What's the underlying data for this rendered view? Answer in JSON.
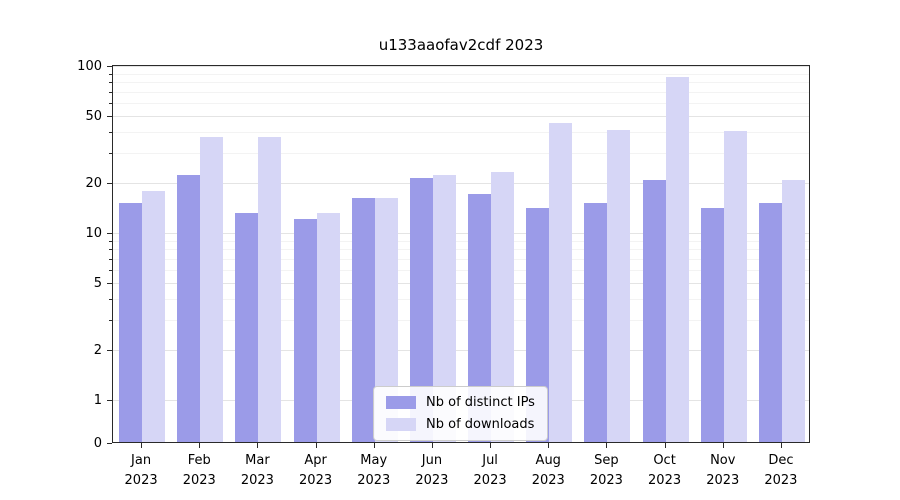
{
  "chart_data": {
    "type": "bar",
    "title": "u133aaofav2cdf 2023",
    "categories": [
      "Jan\n2023",
      "Feb\n2023",
      "Mar\n2023",
      "Apr\n2023",
      "May\n2023",
      "Jun\n2023",
      "Jul\n2023",
      "Aug\n2023",
      "Sep\n2023",
      "Oct\n2023",
      "Nov\n2023",
      "Dec\n2023"
    ],
    "series": [
      {
        "name": "Nb of distinct IPs",
        "color": "#9b9be8",
        "values": [
          15,
          22,
          13,
          12,
          16,
          21,
          17,
          14,
          15,
          20.5,
          14,
          15
        ]
      },
      {
        "name": "Nb of downloads",
        "color": "#d6d6f6",
        "values": [
          17.5,
          37,
          37,
          13,
          16,
          22,
          23,
          45,
          41,
          85,
          40,
          20.5
        ]
      }
    ],
    "xlabel": "",
    "ylabel": "",
    "yscale": "symlog",
    "yticks": [
      0,
      1,
      2,
      5,
      10,
      20,
      50,
      100
    ],
    "minor_yticks": [
      3,
      4,
      6,
      7,
      8,
      9,
      30,
      40,
      60,
      70,
      80,
      90
    ],
    "ylim": [
      0,
      100
    ],
    "grid": "horizontal",
    "legend_position": "bottom-center"
  }
}
